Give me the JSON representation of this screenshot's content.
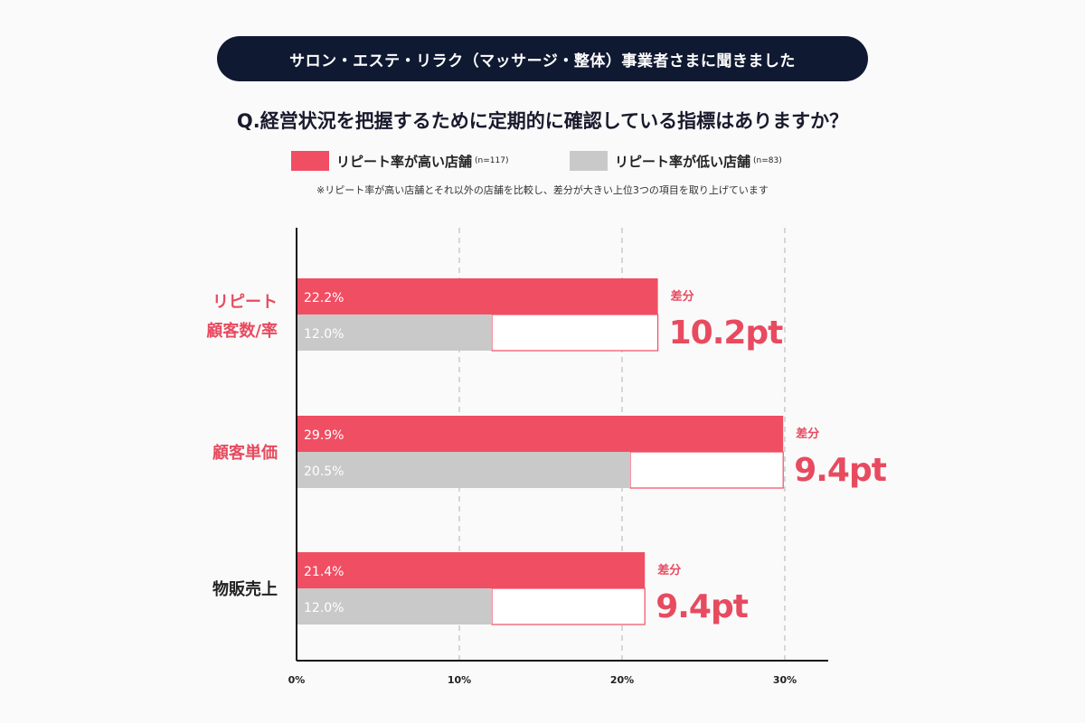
{
  "banner": "サロン・エステ・リラク（マッサージ・整体）事業者さまに聞きました",
  "question": "Q.経営状況を把握するために定期的に確認している指標はありますか？",
  "note": "※リピート率が高い店舗とそれ以外の店舗を比較し、差分が大きい上位3つの項目を取り上げています",
  "colors": {
    "high": "#f04e63",
    "low": "#c9c9c9",
    "text_red": "#e84a5f",
    "text_dark": "#222222"
  },
  "chart_data": {
    "type": "bar",
    "orientation": "horizontal",
    "categories": [
      "リピート\n顧客数/率",
      "顧客単価",
      "物販売上"
    ],
    "series": [
      {
        "name": "リピート率が高い店舗",
        "n": "(n=117)",
        "values": [
          22.2,
          29.9,
          21.4
        ],
        "labels": [
          "22.2%",
          "29.9%",
          "21.4%"
        ]
      },
      {
        "name": "リピート率が低い店舗",
        "n": "(n=83)",
        "values": [
          12.0,
          20.5,
          12.0
        ],
        "labels": [
          "12.0%",
          "20.5%",
          "12.0%"
        ]
      }
    ],
    "diffs": [
      {
        "label": "差分",
        "value": "10.2pt"
      },
      {
        "label": "差分",
        "value": "9.4pt"
      },
      {
        "label": "差分",
        "value": "9.4pt"
      }
    ],
    "category_colors": [
      "red",
      "red",
      "dark"
    ],
    "xticks": [
      "0%",
      "10%",
      "20%",
      "30%"
    ],
    "xlim": [
      0,
      30
    ],
    "grid": "dashed vertical"
  }
}
